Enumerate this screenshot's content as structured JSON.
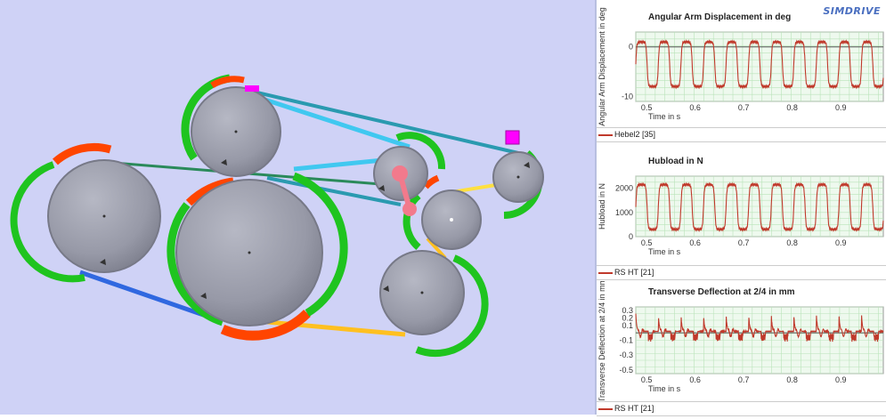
{
  "branding": {
    "logo": "SIMDRIVE"
  },
  "scene": {
    "background": "#cfd2f6",
    "pulley_color": "#9a9caa",
    "arc_green": "#1fc41f",
    "arc_red": "#ff4500",
    "belt_colors": [
      "#40c8f0",
      "#3068e0",
      "#ffc020",
      "#30a060",
      "#ffe040"
    ],
    "marker_color": "#ff00ff",
    "arm_color": "#f27a8c"
  },
  "charts": [
    {
      "title": "Angular Arm Displacement in deg",
      "ylabel": "Angular Arm Displacement in deg",
      "xlabel": "Time in s",
      "legend": "Hebel2 [35]",
      "chart_data": {
        "type": "line",
        "title": "Angular Arm Displacement in deg",
        "xlabel": "Time in s",
        "ylabel": "Angular Arm Displacement in deg",
        "xlim": [
          0.48,
          0.99
        ],
        "ylim": [
          -11,
          3
        ],
        "xticks": [
          "0.5",
          "0.6",
          "0.7",
          "0.8",
          "0.9"
        ],
        "yticks": [
          "0",
          "-10"
        ],
        "grid": true,
        "series": [
          {
            "name": "Hebel2 [35]",
            "color": "#c0392b",
            "period": 0.0465,
            "min": -8,
            "max": 1,
            "shape": "square"
          }
        ]
      }
    },
    {
      "title": "Hubload in N",
      "ylabel": "Hubload in N",
      "xlabel": "Time in s",
      "legend": "RS HT [21]",
      "chart_data": {
        "type": "line",
        "title": "Hubload in N",
        "xlabel": "Time in s",
        "ylabel": "Hubload in N",
        "xlim": [
          0.48,
          0.99
        ],
        "ylim": [
          0,
          2500
        ],
        "xticks": [
          "0.5",
          "0.6",
          "0.7",
          "0.8",
          "0.9"
        ],
        "yticks": [
          "2000",
          "1000",
          "0"
        ],
        "grid": true,
        "series": [
          {
            "name": "RS HT [21]",
            "color": "#c0392b",
            "period": 0.0465,
            "min": 300,
            "max": 2150,
            "shape": "square"
          }
        ]
      }
    },
    {
      "title": "Transverse Deflection at 2/4 in mm",
      "ylabel": "Transverse Deflection at 2/4 in mm",
      "xlabel": "Time in s",
      "legend": "RS HT [21]",
      "chart_data": {
        "type": "line",
        "title": "Transverse Deflection at 2/4 in mm",
        "xlabel": "Time in s",
        "ylabel": "Transverse Deflection at 2/4 in mm",
        "xlim": [
          0.48,
          0.99
        ],
        "ylim": [
          -0.55,
          0.35
        ],
        "xticks": [
          "0.5",
          "0.6",
          "0.7",
          "0.8",
          "0.9"
        ],
        "yticks": [
          "0.3",
          "0.2",
          "0.1",
          "-0.1",
          "-0.3",
          "-0.5"
        ],
        "grid": true,
        "series": [
          {
            "name": "RS HT [21]",
            "color": "#c0392b",
            "period": 0.0465,
            "min": -0.12,
            "max": 0.24,
            "shape": "spike"
          }
        ]
      }
    }
  ]
}
